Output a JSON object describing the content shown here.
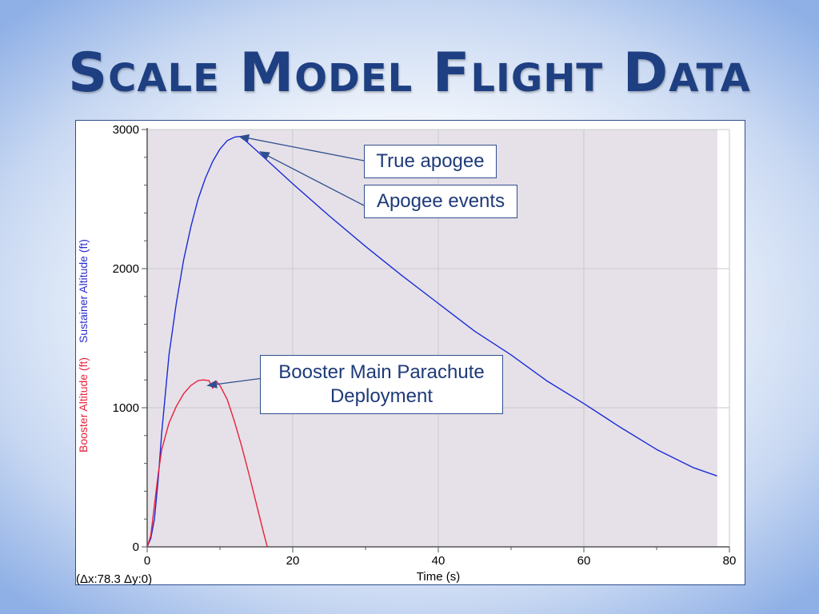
{
  "slide": {
    "title": "Scale Model Flight Data"
  },
  "chart_data": {
    "type": "line",
    "xlabel": "Time (s)",
    "ylabel_booster": "Booster Altitude (ft)",
    "ylabel_sustainer": "Sustainer Altitude (ft)",
    "xlim": [
      0,
      80
    ],
    "ylim": [
      0,
      3000
    ],
    "x_ticks": [
      0,
      20,
      40,
      60,
      80
    ],
    "y_ticks": [
      0,
      1000,
      2000,
      3000
    ],
    "grid": true,
    "plot_background": "#e6e1e8",
    "status_readout": "(Δx:78.3 Δy:0)",
    "series": [
      {
        "name": "Sustainer Altitude (ft)",
        "color": "#1a2bd6",
        "x": [
          0,
          0.5,
          1,
          1.5,
          2,
          3,
          4,
          5,
          6,
          7,
          8,
          9,
          10,
          11,
          12,
          12.7,
          13.5,
          15,
          20,
          25,
          30,
          35,
          40,
          45,
          50,
          55,
          60,
          65,
          70,
          75,
          78.3
        ],
        "y": [
          0,
          60,
          200,
          480,
          820,
          1380,
          1750,
          2060,
          2300,
          2500,
          2650,
          2770,
          2860,
          2920,
          2945,
          2950,
          2920,
          2850,
          2610,
          2380,
          2160,
          1950,
          1750,
          1550,
          1380,
          1190,
          1030,
          860,
          700,
          570,
          510
        ]
      },
      {
        "name": "Booster Altitude (ft)",
        "color": "#e8203c",
        "x": [
          0,
          0.5,
          1,
          1.5,
          2,
          3,
          4,
          5,
          6,
          7,
          7.7,
          8.5,
          9,
          9.5,
          10,
          11,
          12,
          13,
          14,
          15,
          16,
          16.5
        ],
        "y": [
          0,
          80,
          300,
          520,
          700,
          890,
          1010,
          1100,
          1160,
          1195,
          1200,
          1195,
          1140,
          1190,
          1160,
          1060,
          900,
          720,
          520,
          310,
          100,
          0
        ]
      }
    ],
    "annotations": [
      {
        "text": "True apogee",
        "x": 12.7,
        "y": 2950
      },
      {
        "text": "Apogee events",
        "x": 15.5,
        "y": 2840
      },
      {
        "text": "Booster Main Parachute Deployment",
        "x": 8.3,
        "y": 1160
      }
    ]
  }
}
